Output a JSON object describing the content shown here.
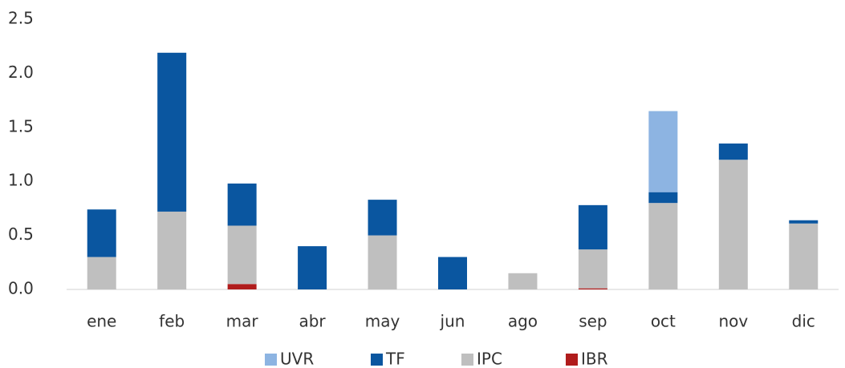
{
  "chart_data": {
    "type": "stacked_bar",
    "categories": [
      "ene",
      "feb",
      "mar",
      "abr",
      "may",
      "jun",
      "ago",
      "sep",
      "oct",
      "nov",
      "dic"
    ],
    "series": [
      {
        "name": "UVR",
        "color": "#8db4e2",
        "values": [
          null,
          null,
          null,
          null,
          null,
          null,
          null,
          null,
          0.75,
          null,
          null
        ]
      },
      {
        "name": "TF",
        "color": "#0a56a0",
        "values": [
          0.44,
          1.47,
          0.39,
          0.4,
          0.33,
          0.3,
          null,
          0.41,
          0.1,
          0.15,
          0.03
        ]
      },
      {
        "name": "IPC",
        "color": "#bfbfbf",
        "values": [
          0.3,
          0.72,
          0.54,
          null,
          0.5,
          null,
          0.15,
          0.36,
          0.8,
          1.2,
          0.61
        ]
      },
      {
        "name": "IBR",
        "color": "#b01c1c",
        "values": [
          null,
          null,
          0.05,
          null,
          null,
          null,
          null,
          0.01,
          null,
          null,
          null
        ]
      }
    ],
    "ylim": [
      0,
      2.5
    ],
    "yticks": [
      {
        "value": 0,
        "label": "0.0"
      },
      0.5,
      {
        "value": 1,
        "label": "1.0"
      },
      1.5,
      {
        "value": 2,
        "label": "2.0"
      },
      2.5
    ]
  }
}
